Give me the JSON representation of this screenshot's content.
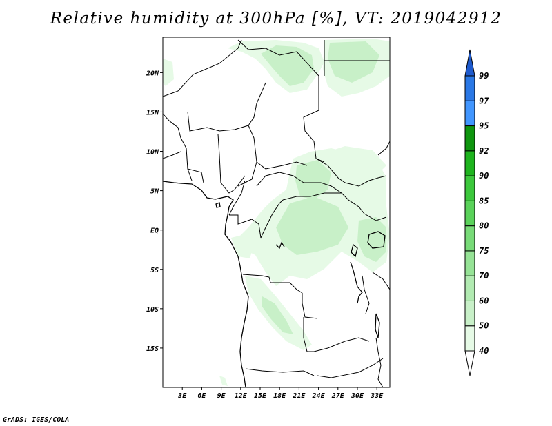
{
  "title": "Relative humidity at 300hPa [%], VT: 2019042912",
  "credit": "GrADS: IGES/COLA",
  "map": {
    "lon_range": [
      0,
      35
    ],
    "lat_range": [
      -20,
      24.5
    ],
    "lon_ticks": [
      {
        "value": 3,
        "label": "3E"
      },
      {
        "value": 6,
        "label": "6E"
      },
      {
        "value": 9,
        "label": "9E"
      },
      {
        "value": 12,
        "label": "12E"
      },
      {
        "value": 15,
        "label": "15E"
      },
      {
        "value": 18,
        "label": "18E"
      },
      {
        "value": 21,
        "label": "21E"
      },
      {
        "value": 24,
        "label": "24E"
      },
      {
        "value": 27,
        "label": "27E"
      },
      {
        "value": 30,
        "label": "30E"
      },
      {
        "value": 33,
        "label": "33E"
      }
    ],
    "lat_ticks": [
      {
        "value": 20,
        "label": "20N"
      },
      {
        "value": 15,
        "label": "15N"
      },
      {
        "value": 10,
        "label": "10N"
      },
      {
        "value": 5,
        "label": "5N"
      },
      {
        "value": 0,
        "label": "EQ"
      },
      {
        "value": -5,
        "label": "5S"
      },
      {
        "value": -10,
        "label": "10S"
      },
      {
        "value": -15,
        "label": "15S"
      }
    ]
  },
  "colorbar": {
    "levels": [
      "40",
      "50",
      "60",
      "70",
      "75",
      "80",
      "85",
      "90",
      "92",
      "95",
      "97",
      "99"
    ],
    "colors": [
      "#ffffff",
      "#e6fae6",
      "#c8f0c8",
      "#b2ebb2",
      "#96e396",
      "#78db78",
      "#5ad25a",
      "#3cc83c",
      "#1eb41e",
      "#0f960f",
      "#4196ff",
      "#2a78e6",
      "#1e5acd"
    ]
  },
  "humidity_colors": {
    "light": "#e6fae6",
    "medium": "#c8f0c8",
    "strong": "#a6e8a6"
  }
}
